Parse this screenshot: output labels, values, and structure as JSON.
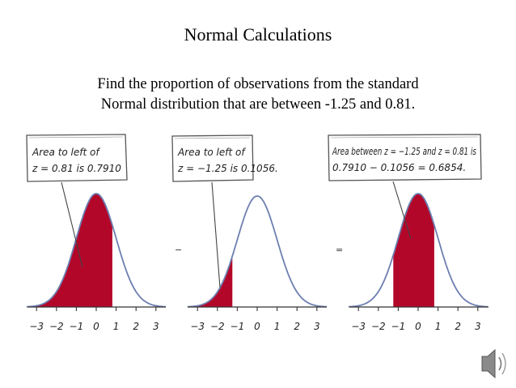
{
  "slide": {
    "title": "Normal Calculations",
    "prompt_line1": "Find the proportion of observations from the standard",
    "prompt_line2": "Normal distribution that are between -1.25 and 0.81."
  },
  "colors": {
    "fill": "#b3072a",
    "curve": "#6d7fb0",
    "axis": "#333333"
  },
  "panels": [
    {
      "callout_line1": "Area to left of",
      "callout_line2": "z = 0.81 is 0.7910",
      "shade_from": -3.4,
      "shade_to": 0.81,
      "ticks": [
        "−3",
        "−2",
        "−1",
        "0",
        "1",
        "2",
        "3"
      ],
      "operator": ""
    },
    {
      "callout_line1": "Area to left of",
      "callout_line2": "z = −1.25 is 0.1056.",
      "shade_from": -3.4,
      "shade_to": -1.25,
      "ticks": [
        "−3",
        "−2",
        "−1",
        "0",
        "1",
        "2",
        "3"
      ],
      "operator": "−"
    },
    {
      "callout_line1": "Area between z = −1.25 and z = 0.81 is",
      "callout_line2": "0.7910 − 0.1056 = 0.6854.",
      "shade_from": -1.25,
      "shade_to": 0.81,
      "ticks": [
        "−3",
        "−2",
        "−1",
        "0",
        "1",
        "2",
        "3"
      ],
      "operator": "="
    }
  ],
  "audio_icon": "speaker-icon"
}
